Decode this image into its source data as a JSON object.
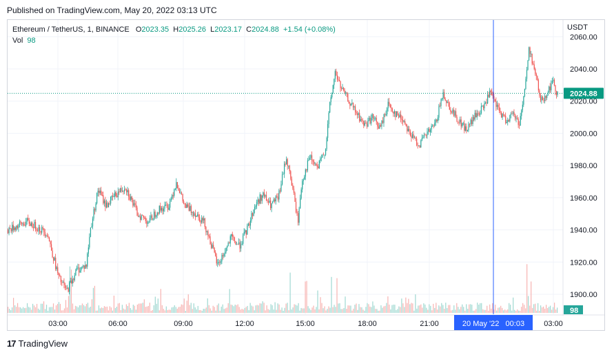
{
  "header": {
    "published": "Published on TradingView.com, May 20, 2022 03:13 UTC"
  },
  "legend": {
    "symbol": "Ethereum / TetherUS, 1, BINANCE",
    "open_label": "O",
    "open": "2023.35",
    "high_label": "H",
    "high": "2025.26",
    "low_label": "L",
    "low": "2023.17",
    "close_label": "C",
    "close": "2024.88",
    "change": "+1.54 (+0.08%)",
    "vol_label": "Vol",
    "vol": "98"
  },
  "axis": {
    "currency": "USDT",
    "last_price_tag": "2024.88",
    "last_volume_tag": "98",
    "crosshair_time": "20 May '22   00:03"
  },
  "footer": {
    "brand": "TradingView",
    "logo_mark": "17"
  },
  "colors": {
    "up": "#26a69a",
    "down": "#ef5350",
    "up_volume": "#9fd8d1",
    "down_volume": "#f7b3b1",
    "crosshair": "#2962ff",
    "price_line": "#089981",
    "grid": "#f0f3fa",
    "price_tag_bg": "#089981"
  },
  "chart_data": {
    "type": "candlestick",
    "symbol": "Ethereum / TetherUS",
    "interval": "1",
    "exchange": "BINANCE",
    "y_ticks": [
      1900,
      1920,
      1940,
      1960,
      1980,
      2000,
      2020,
      2040,
      2060
    ],
    "x_ticks": [
      "03:00",
      "06:00",
      "09:00",
      "12:00",
      "15:00",
      "18:00",
      "21:00",
      "03:00"
    ],
    "ylim": [
      1892,
      2063
    ],
    "grid": true,
    "last_price": 2024.88,
    "price_path": [
      [
        0,
        1940
      ],
      [
        1,
        1945
      ],
      [
        2,
        1938
      ],
      [
        2.6,
        1910
      ],
      [
        3.0,
        1902
      ],
      [
        3.5,
        1915
      ],
      [
        4.0,
        1918
      ],
      [
        4.2,
        1940
      ],
      [
        4.6,
        1965
      ],
      [
        5.0,
        1955
      ],
      [
        5.5,
        1962
      ],
      [
        6.0,
        1967
      ],
      [
        6.6,
        1950
      ],
      [
        7.2,
        1945
      ],
      [
        7.6,
        1952
      ],
      [
        8.2,
        1955
      ],
      [
        8.6,
        1970
      ],
      [
        9.0,
        1955
      ],
      [
        9.6,
        1950
      ],
      [
        10.0,
        1945
      ],
      [
        10.4,
        1930
      ],
      [
        10.7,
        1918
      ],
      [
        11.0,
        1925
      ],
      [
        11.4,
        1935
      ],
      [
        11.8,
        1930
      ],
      [
        12.2,
        1940
      ],
      [
        12.6,
        1955
      ],
      [
        13.0,
        1962
      ],
      [
        13.4,
        1955
      ],
      [
        13.8,
        1960
      ],
      [
        14.2,
        1985
      ],
      [
        14.5,
        1968
      ],
      [
        14.8,
        1945
      ],
      [
        15.0,
        1970
      ],
      [
        15.4,
        1985
      ],
      [
        15.8,
        1978
      ],
      [
        16.2,
        1990
      ],
      [
        16.4,
        2015
      ],
      [
        16.7,
        2038
      ],
      [
        17.0,
        2028
      ],
      [
        17.4,
        2020
      ],
      [
        17.8,
        2012
      ],
      [
        18.2,
        2005
      ],
      [
        18.6,
        2010
      ],
      [
        19.0,
        2003
      ],
      [
        19.4,
        2018
      ],
      [
        19.8,
        2012
      ],
      [
        20.2,
        2008
      ],
      [
        20.6,
        1998
      ],
      [
        21.0,
        1993
      ],
      [
        21.4,
        2000
      ],
      [
        21.8,
        2005
      ],
      [
        22.2,
        2025
      ],
      [
        22.6,
        2015
      ],
      [
        23.0,
        2008
      ],
      [
        23.4,
        2002
      ],
      [
        23.8,
        2010
      ],
      [
        24.2,
        2015
      ],
      [
        24.6,
        2025
      ],
      [
        25.0,
        2015
      ],
      [
        25.4,
        2008
      ],
      [
        25.8,
        2012
      ],
      [
        26.1,
        2006
      ],
      [
        26.4,
        2030
      ],
      [
        26.6,
        2053
      ],
      [
        26.9,
        2038
      ],
      [
        27.2,
        2020
      ],
      [
        27.5,
        2025
      ],
      [
        27.8,
        2032
      ],
      [
        28.0,
        2026
      ],
      [
        28.1,
        2025
      ]
    ],
    "volume_spikes": [
      [
        3.2,
        60
      ],
      [
        4.4,
        35
      ],
      [
        7.8,
        30
      ],
      [
        11.3,
        28
      ],
      [
        14.4,
        55
      ],
      [
        15.2,
        40
      ],
      [
        16.5,
        50
      ],
      [
        16.8,
        45
      ],
      [
        20.8,
        25
      ],
      [
        26.5,
        65
      ],
      [
        26.7,
        40
      ]
    ]
  }
}
